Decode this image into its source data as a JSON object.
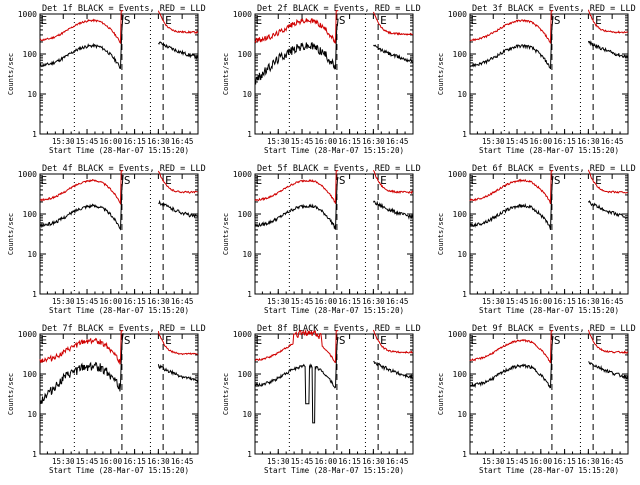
{
  "layout": {
    "rows": 3,
    "cols": 3
  },
  "colors": {
    "events": "#000000",
    "lld": "#d00000",
    "axes": "#000000"
  },
  "chart_data": [
    {
      "type": "line",
      "title": "Det 1f BLACK = Events, RED = LLD",
      "xlabel": "Start Time (28-Mar-07 15:15:20)",
      "ylabel": "Counts/sec",
      "xticks": [
        "15:30",
        "15:45",
        "16:00",
        "16:15",
        "16:30",
        "16:45"
      ],
      "yticks": [
        "1",
        "10",
        "100",
        "1000"
      ],
      "ylim": [
        1,
        1000
      ],
      "yscale": "log",
      "markers": [
        {
          "label": "E",
          "time": "15:15"
        },
        {
          "label": "S",
          "time": "16:07"
        },
        {
          "label": "E",
          "time": "16:33"
        }
      ],
      "vlines": [
        {
          "time": "15:37",
          "style": "dotted"
        },
        {
          "time": "16:07",
          "style": "dashed"
        },
        {
          "time": "16:25",
          "style": "dotted"
        },
        {
          "time": "16:33",
          "style": "dashed"
        }
      ],
      "gap": [
        "16:08",
        "16:30"
      ],
      "series": [
        {
          "name": "Events",
          "profile": "default"
        },
        {
          "name": "LLD",
          "profile": "default"
        }
      ]
    },
    {
      "type": "line",
      "title": "Det 2f BLACK = Events, RED = LLD",
      "xlabel": "Start Time (28-Mar-07 15:15:20)",
      "ylabel": "Counts/sec",
      "xticks": [
        "15:30",
        "15:45",
        "16:00",
        "16:15",
        "16:30",
        "16:45"
      ],
      "yticks": [
        "1",
        "10",
        "100",
        "1000"
      ],
      "ylim": [
        1,
        1000
      ],
      "yscale": "log",
      "markers": [
        {
          "label": "E",
          "time": "15:15"
        },
        {
          "label": "S",
          "time": "16:07"
        },
        {
          "label": "E",
          "time": "16:33"
        }
      ],
      "vlines": [
        {
          "time": "15:37",
          "style": "dotted"
        },
        {
          "time": "16:07",
          "style": "dashed"
        },
        {
          "time": "16:25",
          "style": "dotted"
        },
        {
          "time": "16:33",
          "style": "dashed"
        }
      ],
      "gap": [
        "16:08",
        "16:30"
      ],
      "series": [
        {
          "name": "Events",
          "profile": "noisy"
        },
        {
          "name": "LLD",
          "profile": "noisy"
        }
      ]
    },
    {
      "type": "line",
      "title": "Det 3f BLACK = Events, RED = LLD",
      "xlabel": "Start Time (28-Mar-07 15:15:20)",
      "ylabel": "Counts/sec",
      "xticks": [
        "15:30",
        "15:45",
        "16:00",
        "16:15",
        "16:30",
        "16:45"
      ],
      "yticks": [
        "1",
        "10",
        "100",
        "1000"
      ],
      "ylim": [
        1,
        1000
      ],
      "yscale": "log",
      "markers": [
        {
          "label": "E",
          "time": "15:15"
        },
        {
          "label": "S",
          "time": "16:07"
        },
        {
          "label": "E",
          "time": "16:33"
        }
      ],
      "vlines": [
        {
          "time": "15:37",
          "style": "dotted"
        },
        {
          "time": "16:07",
          "style": "dashed"
        },
        {
          "time": "16:25",
          "style": "dotted"
        },
        {
          "time": "16:33",
          "style": "dashed"
        }
      ],
      "gap": [
        "16:08",
        "16:30"
      ],
      "series": [
        {
          "name": "Events",
          "profile": "default"
        },
        {
          "name": "LLD",
          "profile": "default"
        }
      ]
    },
    {
      "type": "line",
      "title": "Det 4f BLACK = Events, RED = LLD",
      "xlabel": "Start Time (28-Mar-07 15:15:20)",
      "ylabel": "Counts/sec",
      "xticks": [
        "15:30",
        "15:45",
        "16:00",
        "16:15",
        "16:30",
        "16:45"
      ],
      "yticks": [
        "1",
        "10",
        "100",
        "1000"
      ],
      "ylim": [
        1,
        1000
      ],
      "yscale": "log",
      "markers": [
        {
          "label": "E",
          "time": "15:15"
        },
        {
          "label": "S",
          "time": "16:07"
        },
        {
          "label": "E",
          "time": "16:33"
        }
      ],
      "vlines": [
        {
          "time": "15:37",
          "style": "dotted"
        },
        {
          "time": "16:07",
          "style": "dashed"
        },
        {
          "time": "16:25",
          "style": "dotted"
        },
        {
          "time": "16:33",
          "style": "dashed"
        }
      ],
      "gap": [
        "16:08",
        "16:30"
      ],
      "series": [
        {
          "name": "Events",
          "profile": "default"
        },
        {
          "name": "LLD",
          "profile": "default"
        }
      ]
    },
    {
      "type": "line",
      "title": "Det 5f BLACK = Events, RED = LLD",
      "xlabel": "Start Time (28-Mar-07 15:15:20)",
      "ylabel": "Counts/sec",
      "xticks": [
        "15:30",
        "15:45",
        "16:00",
        "16:15",
        "16:30",
        "16:45"
      ],
      "yticks": [
        "1",
        "10",
        "100",
        "1000"
      ],
      "ylim": [
        1,
        1000
      ],
      "yscale": "log",
      "markers": [
        {
          "label": "E",
          "time": "15:15"
        },
        {
          "label": "S",
          "time": "16:07"
        },
        {
          "label": "E",
          "time": "16:33"
        }
      ],
      "vlines": [
        {
          "time": "15:37",
          "style": "dotted"
        },
        {
          "time": "16:07",
          "style": "dashed"
        },
        {
          "time": "16:25",
          "style": "dotted"
        },
        {
          "time": "16:33",
          "style": "dashed"
        }
      ],
      "gap": [
        "16:08",
        "16:30"
      ],
      "series": [
        {
          "name": "Events",
          "profile": "default"
        },
        {
          "name": "LLD",
          "profile": "default"
        }
      ]
    },
    {
      "type": "line",
      "title": "Det 6f BLACK = Events, RED = LLD",
      "xlabel": "Start Time (28-Mar-07 15:15:20)",
      "ylabel": "Counts/sec",
      "xticks": [
        "15:30",
        "15:45",
        "16:00",
        "16:15",
        "16:30",
        "16:45"
      ],
      "yticks": [
        "1",
        "10",
        "100",
        "1000"
      ],
      "ylim": [
        1,
        1000
      ],
      "yscale": "log",
      "markers": [
        {
          "label": "E",
          "time": "15:15"
        },
        {
          "label": "S",
          "time": "16:07"
        },
        {
          "label": "E",
          "time": "16:33"
        }
      ],
      "vlines": [
        {
          "time": "15:37",
          "style": "dotted"
        },
        {
          "time": "16:07",
          "style": "dashed"
        },
        {
          "time": "16:25",
          "style": "dotted"
        },
        {
          "time": "16:33",
          "style": "dashed"
        }
      ],
      "gap": [
        "16:08",
        "16:30"
      ],
      "series": [
        {
          "name": "Events",
          "profile": "default"
        },
        {
          "name": "LLD",
          "profile": "default"
        }
      ]
    },
    {
      "type": "line",
      "title": "Det 7f BLACK = Events, RED = LLD",
      "xlabel": "Start Time (28-Mar-07 15:15:20)",
      "ylabel": "Counts/sec",
      "xticks": [
        "15:30",
        "15:45",
        "16:00",
        "16:15",
        "16:30",
        "16:45"
      ],
      "yticks": [
        "1",
        "10",
        "100",
        "1000"
      ],
      "ylim": [
        1,
        1000
      ],
      "yscale": "log",
      "markers": [
        {
          "label": "E",
          "time": "15:15"
        },
        {
          "label": "S",
          "time": "16:07"
        },
        {
          "label": "E",
          "time": "16:33"
        }
      ],
      "vlines": [
        {
          "time": "15:37",
          "style": "dotted"
        },
        {
          "time": "16:07",
          "style": "dashed"
        },
        {
          "time": "16:25",
          "style": "dotted"
        },
        {
          "time": "16:33",
          "style": "dashed"
        }
      ],
      "gap": [
        "16:08",
        "16:30"
      ],
      "series": [
        {
          "name": "Events",
          "profile": "noisy"
        },
        {
          "name": "LLD",
          "profile": "noisy"
        }
      ]
    },
    {
      "type": "line",
      "title": "Det 8f BLACK = Events, RED = LLD",
      "xlabel": "Start Time (28-Mar-07 15:15:20)",
      "ylabel": "Counts/sec",
      "xticks": [
        "15:30",
        "15:45",
        "16:00",
        "16:15",
        "16:30",
        "16:45"
      ],
      "yticks": [
        "1",
        "10",
        "100",
        "1000"
      ],
      "ylim": [
        1,
        1000
      ],
      "yscale": "log",
      "markers": [
        {
          "label": "E",
          "time": "15:15"
        },
        {
          "label": "S",
          "time": "16:07"
        },
        {
          "label": "E",
          "time": "16:33"
        }
      ],
      "vlines": [
        {
          "time": "15:37",
          "style": "dotted"
        },
        {
          "time": "16:07",
          "style": "dashed"
        },
        {
          "time": "16:25",
          "style": "dotted"
        },
        {
          "time": "16:33",
          "style": "dashed"
        }
      ],
      "gap": [
        "16:08",
        "16:30"
      ],
      "series": [
        {
          "name": "Events",
          "profile": "spiky"
        },
        {
          "name": "LLD",
          "profile": "spiky"
        }
      ]
    },
    {
      "type": "line",
      "title": "Det 9f BLACK = Events, RED = LLD",
      "xlabel": "Start Time (28-Mar-07 15:15:20)",
      "ylabel": "Counts/sec",
      "xticks": [
        "15:30",
        "15:45",
        "16:00",
        "16:15",
        "16:30",
        "16:45"
      ],
      "yticks": [
        "1",
        "10",
        "100",
        "1000"
      ],
      "ylim": [
        1,
        1000
      ],
      "yscale": "log",
      "markers": [
        {
          "label": "E",
          "time": "15:15"
        },
        {
          "label": "S",
          "time": "16:07"
        },
        {
          "label": "E",
          "time": "16:33"
        }
      ],
      "vlines": [
        {
          "time": "15:37",
          "style": "dotted"
        },
        {
          "time": "16:07",
          "style": "dashed"
        },
        {
          "time": "16:25",
          "style": "dotted"
        },
        {
          "time": "16:33",
          "style": "dashed"
        }
      ],
      "gap": [
        "16:08",
        "16:30"
      ],
      "series": [
        {
          "name": "Events",
          "profile": "default"
        },
        {
          "name": "LLD",
          "profile": "default"
        }
      ]
    }
  ]
}
